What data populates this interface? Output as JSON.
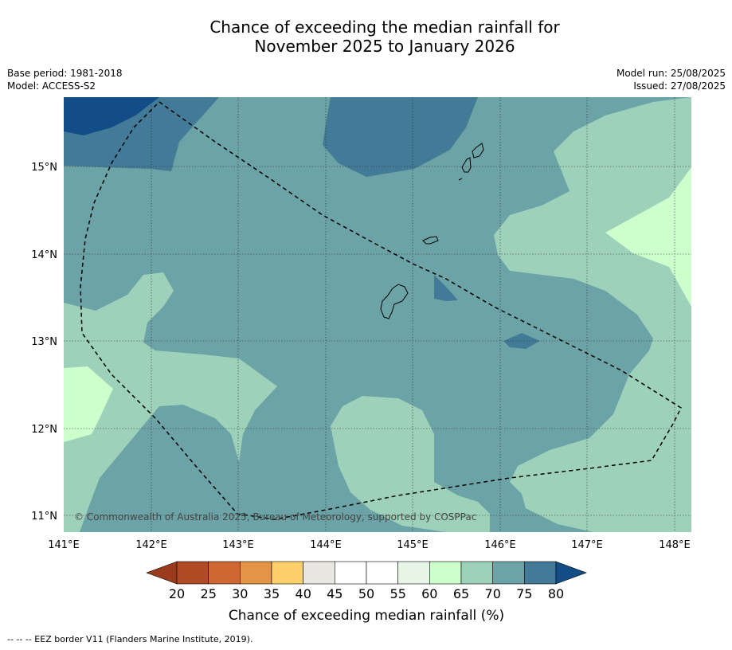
{
  "title_line1": "Chance of exceeding the median rainfall for",
  "title_line2": "November 2025 to January 2026",
  "meta_left": {
    "base_period": "Base period: 1981-2018",
    "model": "Model: ACCESS-S2"
  },
  "meta_right": {
    "model_run": "Model run: 25/08/2025",
    "issued": "Issued: 27/08/2025"
  },
  "copyright": "© Commonwealth of Australia 2025, Bureau of Meteorology, supported by COSPPac",
  "axes": {
    "lon_ticks": [
      "141°E",
      "142°E",
      "143°E",
      "144°E",
      "145°E",
      "146°E",
      "147°E",
      "148°E"
    ],
    "lat_ticks": [
      "15°N",
      "14°N",
      "13°N",
      "12°N",
      "11°N"
    ]
  },
  "colorbar": {
    "labels": [
      "20",
      "25",
      "30",
      "35",
      "40",
      "45",
      "50",
      "55",
      "60",
      "65",
      "70",
      "75",
      "80"
    ],
    "colors": [
      "#9a3b1e",
      "#b24a25",
      "#cf6732",
      "#e39446",
      "#fdd06b",
      "#e9e7e2",
      "#ffffff",
      "#ffffff",
      "#e7f5e7",
      "#ccffcc",
      "#9ed1b9",
      "#6ca3a6",
      "#427a98",
      "#134d87"
    ],
    "title": "Chance of exceeding median rainfall (%)"
  },
  "footnote": "--  --  -- EEZ border V11 (Flanders Marine Institute, 2019).",
  "colors": {
    "c60_65": "#ccffcc",
    "c65_70": "#9ed1b9",
    "c70_75": "#6ca3a6",
    "c75_80": "#427a98",
    "c80_plus": "#134d87"
  }
}
